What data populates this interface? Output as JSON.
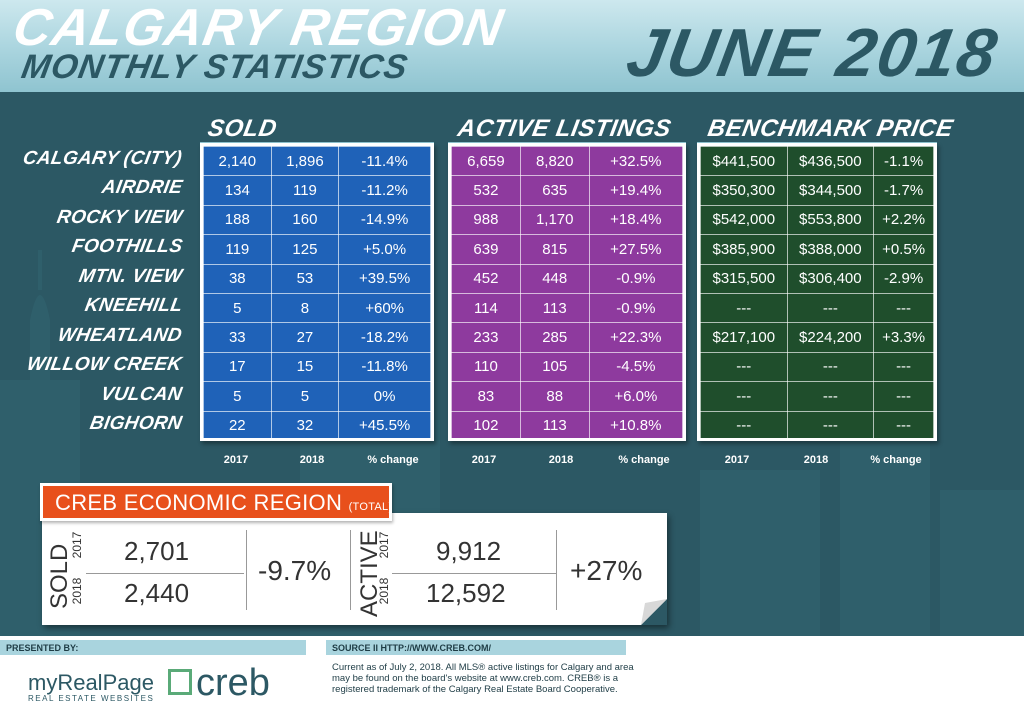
{
  "header": {
    "title_main": "Calgary Region",
    "title_sub": "Monthly Statistics",
    "date": "JUNE 2018"
  },
  "sections": {
    "sold": "Sold",
    "active": "Active Listings",
    "price": "Benchmark Price"
  },
  "regions": [
    "Calgary (City)",
    "Airdrie",
    "Rocky View",
    "Foothills",
    "Mtn. View",
    "Kneehill",
    "Wheatland",
    "Willow Creek",
    "Vulcan",
    "Bighorn"
  ],
  "column_labels": [
    "2017",
    "2018",
    "% change"
  ],
  "sold": [
    [
      "2,140",
      "1,896",
      "-11.4%"
    ],
    [
      "134",
      "119",
      "-11.2%"
    ],
    [
      "188",
      "160",
      "-14.9%"
    ],
    [
      "119",
      "125",
      "+5.0%"
    ],
    [
      "38",
      "53",
      "+39.5%"
    ],
    [
      "5",
      "8",
      "+60%"
    ],
    [
      "33",
      "27",
      "-18.2%"
    ],
    [
      "17",
      "15",
      "-11.8%"
    ],
    [
      "5",
      "5",
      "0%"
    ],
    [
      "22",
      "32",
      "+45.5%"
    ]
  ],
  "active": [
    [
      "6,659",
      "8,820",
      "+32.5%"
    ],
    [
      "532",
      "635",
      "+19.4%"
    ],
    [
      "988",
      "1,170",
      "+18.4%"
    ],
    [
      "639",
      "815",
      "+27.5%"
    ],
    [
      "452",
      "448",
      "-0.9%"
    ],
    [
      "114",
      "113",
      "-0.9%"
    ],
    [
      "233",
      "285",
      "+22.3%"
    ],
    [
      "110",
      "105",
      "-4.5%"
    ],
    [
      "83",
      "88",
      "+6.0%"
    ],
    [
      "102",
      "113",
      "+10.8%"
    ]
  ],
  "price": [
    [
      "$441,500",
      "$436,500",
      "-1.1%"
    ],
    [
      "$350,300",
      "$344,500",
      "-1.7%"
    ],
    [
      "$542,000",
      "$553,800",
      "+2.2%"
    ],
    [
      "$385,900",
      "$388,000",
      "+0.5%"
    ],
    [
      "$315,500",
      "$306,400",
      "-2.9%"
    ],
    [
      "---",
      "---",
      "---"
    ],
    [
      "$217,100",
      "$224,200",
      "+3.3%"
    ],
    [
      "---",
      "---",
      "---"
    ],
    [
      "---",
      "---",
      "---"
    ],
    [
      "---",
      "---",
      "---"
    ]
  ],
  "creb": {
    "title": "CREB ECONOMIC REGION",
    "total": "(TOTAL)",
    "sold_label": "SOLD",
    "active_label": "ACTIVE",
    "year_2017": "2017",
    "year_2018": "2018",
    "sold_2017": "2,701",
    "sold_2018": "2,440",
    "sold_change": "-9.7%",
    "active_2017": "9,912",
    "active_2018": "12,592",
    "active_change": "+27%"
  },
  "footer": {
    "presented_by": "PRESENTED BY:",
    "brand": "myRealPage",
    "brand_tag": "REAL ESTATE WEBSITES",
    "creb_logo": "creb",
    "source": "SOURCE II HTTP://WWW.CREB.COM/",
    "note": "Current as of July 2, 2018.  All MLS® active listings for Calgary and area may be found on the board's website at www.creb.com. CREB® is a registered trademark of the Calgary Real Estate Board Cooperative."
  },
  "colors": {
    "background": "#2c5864",
    "sold": "#1f62b8",
    "active": "#8e3a9e",
    "price": "#1f4e2c",
    "creb_banner": "#e8501c"
  }
}
